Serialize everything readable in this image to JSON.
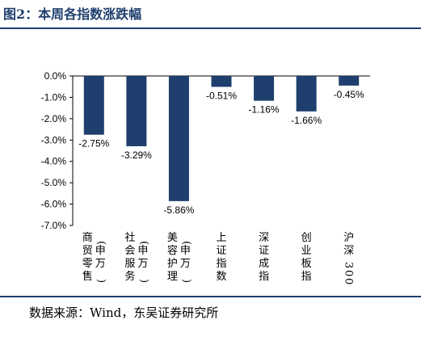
{
  "header": {
    "title": "图2：本周各指数涨跌幅"
  },
  "footer": {
    "source": "数据来源：Wind，东吴证券研究所"
  },
  "chart_data": {
    "type": "bar",
    "title": "",
    "xlabel": "",
    "ylabel": "",
    "categories": [
      "商贸零售(申万)",
      "社会服务(申万)",
      "美容护理(申万)",
      "上证指数",
      "深证成指",
      "创业板指",
      "沪深300"
    ],
    "category_label_columns": [
      [
        "商贸零售",
        "(申万)"
      ],
      [
        "社会服务",
        "(申万)"
      ],
      [
        "美容护理",
        "(申万)"
      ],
      [
        "上证指数"
      ],
      [
        "深证成指"
      ],
      [
        "创业板指"
      ],
      [
        "沪深300"
      ]
    ],
    "values": [
      -2.75,
      -3.29,
      -5.86,
      -0.51,
      -1.16,
      -1.66,
      -0.45
    ],
    "data_labels": [
      "-2.75%",
      "-3.29%",
      "-5.86%",
      "-0.51%",
      "-1.16%",
      "-1.66%",
      "-0.45%"
    ],
    "ylim": [
      -7.0,
      0.0
    ],
    "yticks": [
      0.0,
      -1.0,
      -2.0,
      -3.0,
      -4.0,
      -5.0,
      -6.0,
      -7.0
    ],
    "ytick_labels": [
      "0.0%",
      "-1.0%",
      "-2.0%",
      "-3.0%",
      "-4.0%",
      "-5.0%",
      "-6.0%",
      "-7.0%"
    ],
    "bar_color": "#1f3f6e",
    "grid": false,
    "legend": "none"
  }
}
